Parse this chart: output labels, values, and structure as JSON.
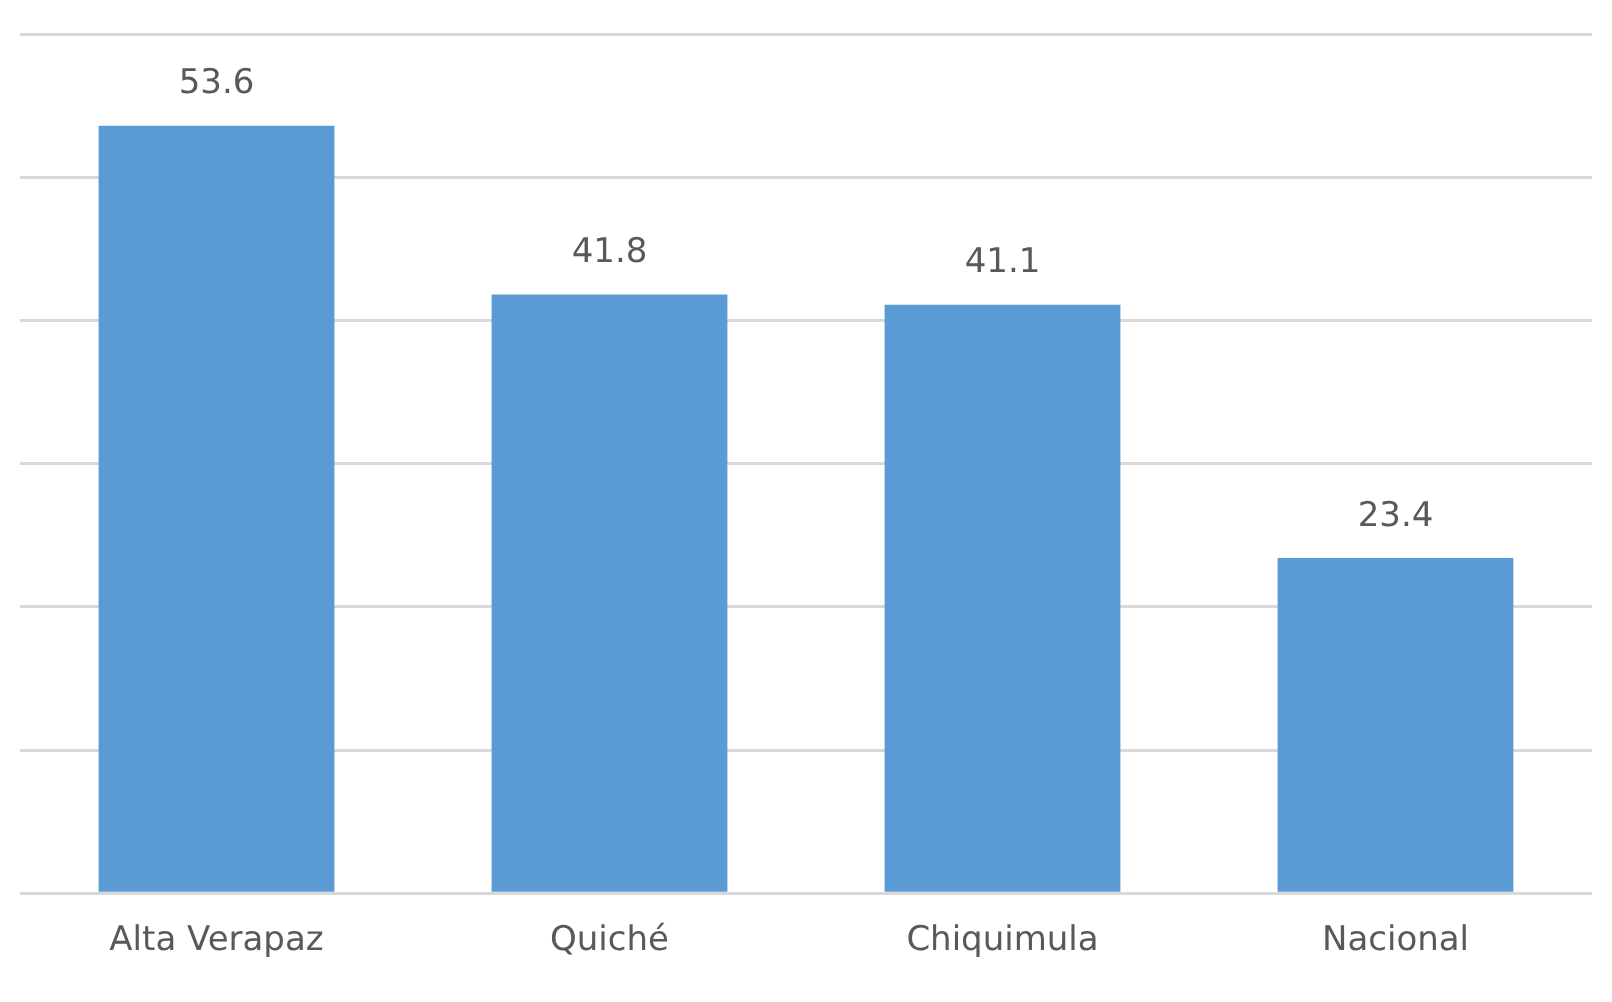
{
  "chart_data": {
    "type": "bar",
    "categories": [
      "Alta Verapaz",
      "Quiché",
      "Chiquimula",
      "Nacional"
    ],
    "values": [
      53.6,
      41.8,
      41.1,
      23.4
    ],
    "color": "#5b9bd5",
    "data_labels": true,
    "ylim": [
      0,
      60
    ],
    "yticks": [
      {
        "value": 0,
        "label": null
      },
      {
        "value": 10,
        "label": null
      },
      {
        "value": 20,
        "label": null
      },
      {
        "value": 30,
        "label": null
      },
      {
        "value": 40,
        "label": null
      },
      {
        "value": 50,
        "label": null
      },
      {
        "value": 60,
        "label": null
      }
    ],
    "grid": "y",
    "tick_labels": "x"
  }
}
